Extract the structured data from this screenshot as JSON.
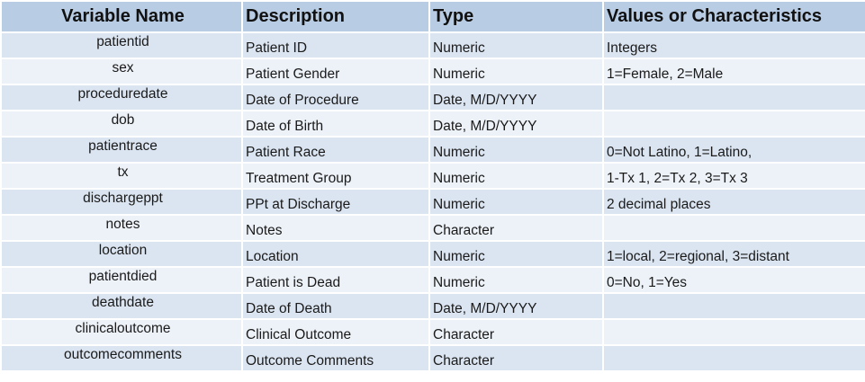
{
  "table": {
    "headers": [
      "Variable Name",
      "Description",
      "Type",
      "Values or Characteristics"
    ],
    "rows": [
      [
        "patientid",
        "Patient ID",
        "Numeric",
        "Integers"
      ],
      [
        "sex",
        "Patient Gender",
        "Numeric",
        "1=Female, 2=Male"
      ],
      [
        "proceduredate",
        "Date of Procedure",
        "Date, M/D/YYYY",
        null
      ],
      [
        "dob",
        "Date of Birth",
        "Date, M/D/YYYY",
        null
      ],
      [
        "patientrace",
        "Patient Race",
        "Numeric",
        "0=Not Latino, 1=Latino,"
      ],
      [
        "tx",
        "Treatment Group",
        "Numeric",
        "1-Tx 1, 2=Tx 2, 3=Tx 3"
      ],
      [
        "dischargeppt",
        "PPt at Discharge",
        "Numeric",
        "2 decimal places"
      ],
      [
        "notes",
        "Notes",
        "Character",
        null
      ],
      [
        "location",
        "Location",
        "Numeric",
        "1=local, 2=regional, 3=distant"
      ],
      [
        "patientdied",
        "Patient is Dead",
        "Numeric",
        "0=No, 1=Yes"
      ],
      [
        "deathdate",
        "Date of Death",
        "Date, M/D/YYYY",
        null
      ],
      [
        "clinicaloutcome",
        "Clinical Outcome",
        "Character",
        null
      ],
      [
        "outcomecomments",
        "Outcome Comments",
        "Character",
        null
      ]
    ]
  }
}
